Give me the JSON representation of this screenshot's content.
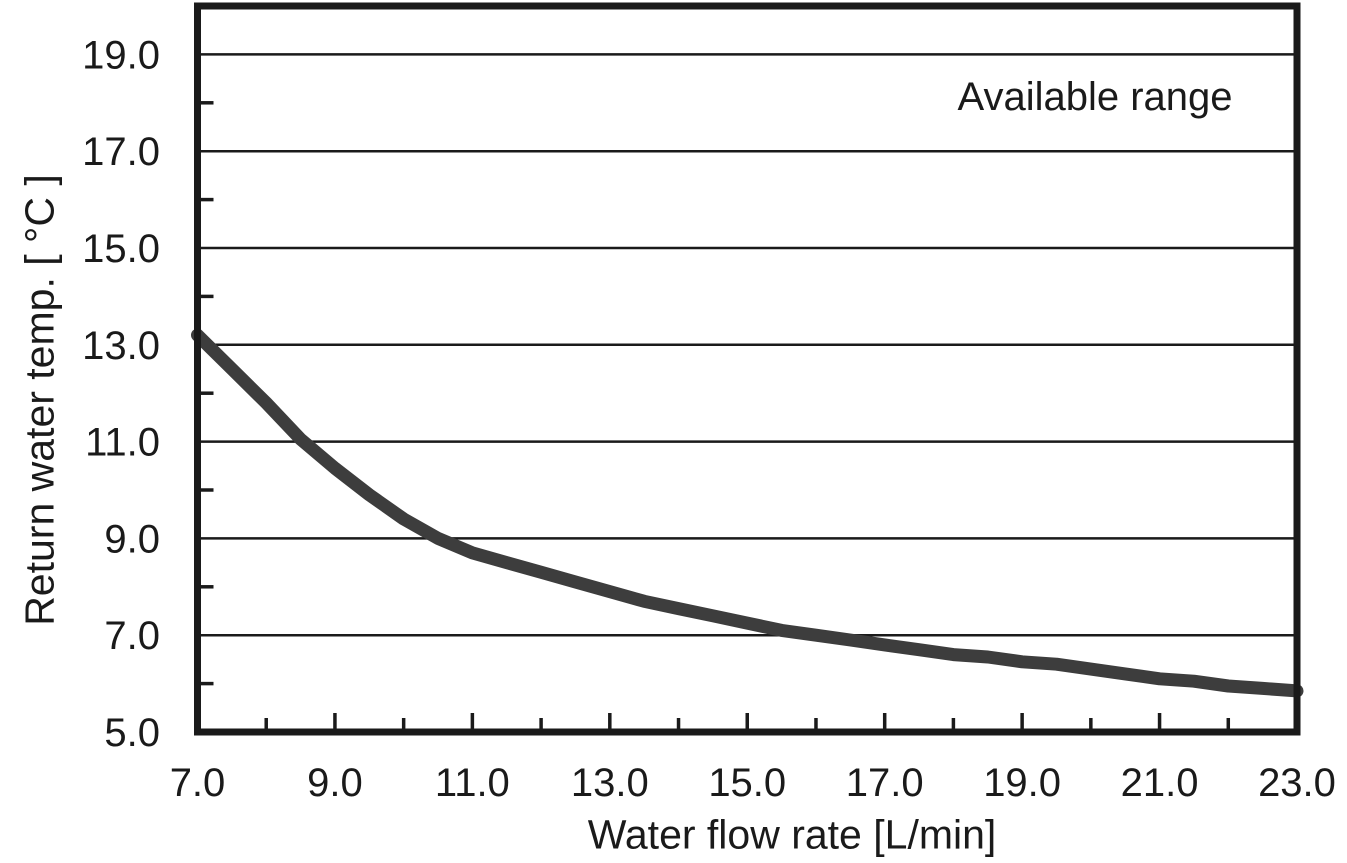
{
  "chart_data": {
    "type": "line",
    "title": "",
    "xlabel": "Water flow rate [L/min]",
    "ylabel": "Return water temp. [ °C ]",
    "annotation": "Available range",
    "xlim": [
      7.0,
      23.0
    ],
    "ylim": [
      5.0,
      20.0
    ],
    "x_major_tick_values": [
      7.0,
      9.0,
      11.0,
      13.0,
      15.0,
      17.0,
      19.0,
      21.0,
      23.0
    ],
    "x_tick_labels": [
      "7.0",
      "9.0",
      "11.0",
      "13.0",
      "15.0",
      "17.0",
      "19.0",
      "21.0",
      "23.0"
    ],
    "x_minor_tick_step": 1.0,
    "y_major_tick_values": [
      5.0,
      7.0,
      9.0,
      11.0,
      13.0,
      15.0,
      17.0,
      19.0
    ],
    "y_tick_labels": [
      "5.0",
      "7.0",
      "9.0",
      "11.0",
      "13.0",
      "15.0",
      "17.0",
      "19.0"
    ],
    "y_minor_tick_step": 1.0,
    "grid": "horizontal-major-only",
    "legend": "none",
    "series": [
      {
        "name": "available-range-curve",
        "x": [
          7.0,
          7.5,
          8.0,
          8.5,
          9.0,
          9.5,
          10.0,
          10.5,
          11.0,
          11.5,
          12.0,
          12.5,
          13.0,
          13.5,
          14.0,
          14.5,
          15.0,
          15.5,
          16.0,
          16.5,
          17.0,
          17.5,
          18.0,
          18.5,
          19.0,
          19.5,
          20.0,
          20.5,
          21.0,
          21.5,
          22.0,
          22.5,
          23.0
        ],
        "y": [
          13.2,
          12.5,
          11.8,
          11.05,
          10.45,
          9.9,
          9.4,
          9.0,
          8.7,
          8.5,
          8.3,
          8.1,
          7.9,
          7.7,
          7.55,
          7.4,
          7.25,
          7.1,
          7.0,
          6.9,
          6.8,
          6.7,
          6.6,
          6.55,
          6.45,
          6.4,
          6.3,
          6.2,
          6.1,
          6.05,
          5.95,
          5.9,
          5.85
        ]
      }
    ],
    "colors": {
      "line": "#3d3d3d",
      "axis_frame": "#1a1a1a",
      "gridline": "#1a1a1a",
      "tick": "#1a1a1a",
      "text": "#1a1a1a",
      "background": "#ffffff"
    }
  }
}
